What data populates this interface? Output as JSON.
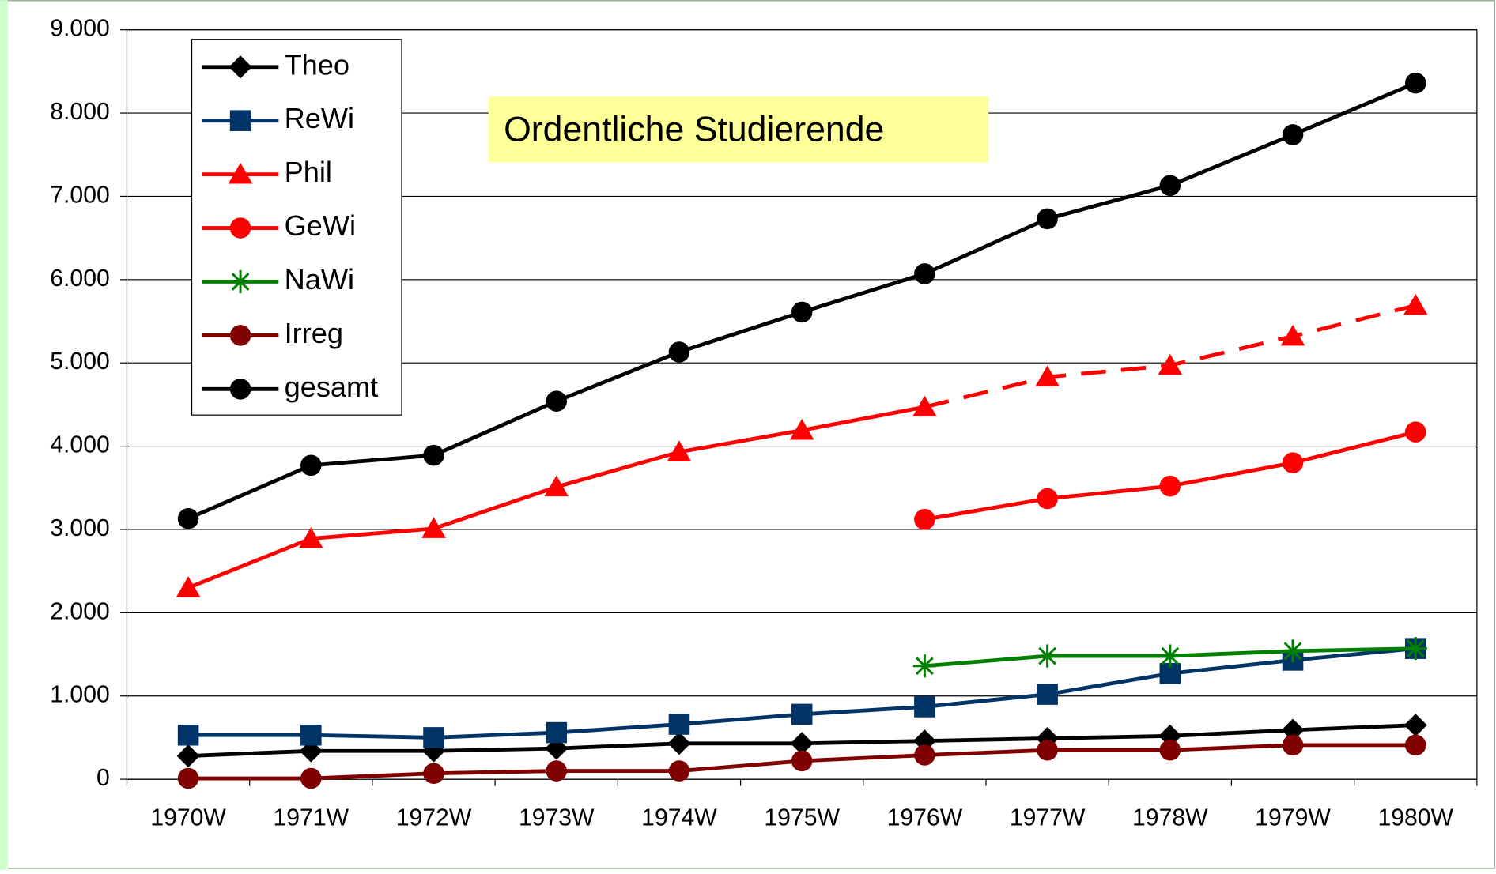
{
  "chart_data": {
    "type": "line",
    "annotation": "Ordentliche Studierende",
    "categories": [
      "1970W",
      "1971W",
      "1972W",
      "1973W",
      "1974W",
      "1975W",
      "1976W",
      "1977W",
      "1978W",
      "1979W",
      "1980W"
    ],
    "series": [
      {
        "name": "Theo",
        "color": "#000000",
        "marker": "diamond",
        "values": [
          280,
          340,
          340,
          370,
          430,
          430,
          460,
          490,
          520,
          590,
          650
        ]
      },
      {
        "name": "ReWi",
        "color": "#003366",
        "marker": "square",
        "values": [
          530,
          530,
          500,
          560,
          660,
          780,
          870,
          1020,
          1270,
          1430,
          1570
        ]
      },
      {
        "name": "Phil",
        "color": "#ff0000",
        "marker": "triangle",
        "dashed_from_index": 6,
        "values": [
          2300,
          2890,
          3010,
          3510,
          3930,
          4190,
          4470,
          4830,
          4970,
          5320,
          5690
        ]
      },
      {
        "name": "GeWi",
        "color": "#ff0000",
        "marker": "circle",
        "values": [
          null,
          null,
          null,
          null,
          null,
          null,
          3120,
          3370,
          3520,
          3800,
          4170
        ]
      },
      {
        "name": "NaWi",
        "color": "#008000",
        "marker": "star",
        "values": [
          null,
          null,
          null,
          null,
          null,
          null,
          1360,
          1480,
          1480,
          1540,
          1570
        ]
      },
      {
        "name": "Irreg",
        "color": "#800000",
        "marker": "circle",
        "values": [
          10,
          10,
          70,
          100,
          100,
          220,
          290,
          350,
          350,
          410,
          410
        ]
      },
      {
        "name": "gesamt",
        "color": "#000000",
        "marker": "circle",
        "values": [
          3130,
          3770,
          3890,
          4540,
          5130,
          5610,
          6070,
          6730,
          7130,
          7740,
          8360
        ]
      }
    ],
    "ylim": [
      0,
      9000
    ],
    "yticks": [
      0,
      {
        "value": 1000,
        "label": "1.000"
      },
      {
        "value": 2000,
        "label": "2.000"
      },
      {
        "value": 3000,
        "label": "3.000"
      },
      {
        "value": 4000,
        "label": "4.000"
      },
      {
        "value": 5000,
        "label": "5.000"
      },
      {
        "value": 6000,
        "label": "6.000"
      },
      {
        "value": 7000,
        "label": "7.000"
      },
      {
        "value": 8000,
        "label": "8.000"
      },
      {
        "value": 9000,
        "label": "9.000"
      }
    ],
    "grid": true,
    "legend": "upper left"
  }
}
